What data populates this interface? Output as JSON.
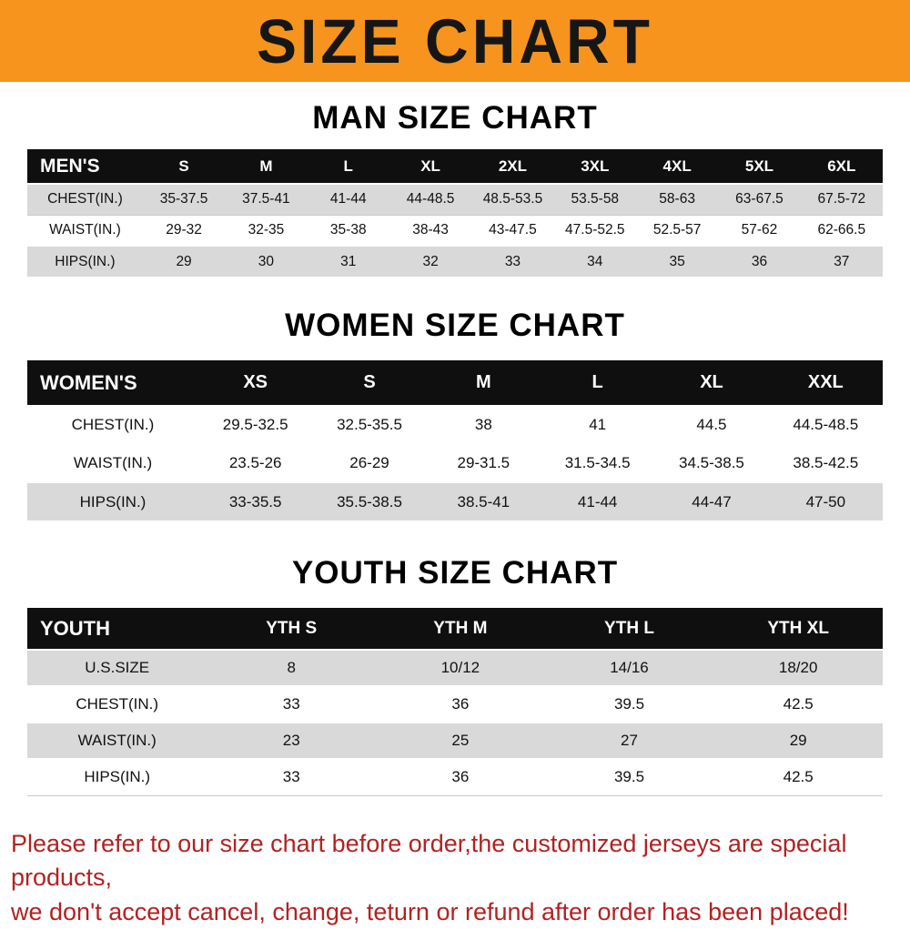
{
  "banner": {
    "title": "SIZE CHART",
    "bg_color": "#f7941d"
  },
  "chart_data": [
    {
      "type": "table",
      "title": "MAN SIZE CHART",
      "label": "MEN'S",
      "columns": [
        "S",
        "M",
        "L",
        "XL",
        "2XL",
        "3XL",
        "4XL",
        "5XL",
        "6XL"
      ],
      "rows": [
        {
          "label": "CHEST(IN.)",
          "values": [
            "35-37.5",
            "37.5-41",
            "41-44",
            "44-48.5",
            "48.5-53.5",
            "53.5-58",
            "58-63",
            "63-67.5",
            "67.5-72"
          ]
        },
        {
          "label": "WAIST(IN.)",
          "values": [
            "29-32",
            "32-35",
            "35-38",
            "38-43",
            "43-47.5",
            "47.5-52.5",
            "52.5-57",
            "57-62",
            "62-66.5"
          ]
        },
        {
          "label": "HIPS(IN.)",
          "values": [
            "29",
            "30",
            "31",
            "32",
            "33",
            "34",
            "35",
            "36",
            "37"
          ]
        }
      ]
    },
    {
      "type": "table",
      "title": "WOMEN SIZE CHART",
      "label": "WOMEN'S",
      "columns": [
        "XS",
        "S",
        "M",
        "L",
        "XL",
        "XXL"
      ],
      "rows": [
        {
          "label": "CHEST(IN.)",
          "values": [
            "29.5-32.5",
            "32.5-35.5",
            "38",
            "41",
            "44.5",
            "44.5-48.5"
          ]
        },
        {
          "label": "WAIST(IN.)",
          "values": [
            "23.5-26",
            "26-29",
            "29-31.5",
            "31.5-34.5",
            "34.5-38.5",
            "38.5-42.5"
          ]
        },
        {
          "label": "HIPS(IN.)",
          "values": [
            "33-35.5",
            "35.5-38.5",
            "38.5-41",
            "41-44",
            "44-47",
            "47-50"
          ]
        }
      ]
    },
    {
      "type": "table",
      "title": "YOUTH SIZE CHART",
      "label": "YOUTH",
      "columns": [
        "YTH S",
        "YTH M",
        "YTH L",
        "YTH XL"
      ],
      "rows": [
        {
          "label": "U.S.SIZE",
          "values": [
            "8",
            "10/12",
            "14/16",
            "18/20"
          ]
        },
        {
          "label": "CHEST(IN.)",
          "values": [
            "33",
            "36",
            "39.5",
            "42.5"
          ]
        },
        {
          "label": "WAIST(IN.)",
          "values": [
            "23",
            "25",
            "27",
            "29"
          ]
        },
        {
          "label": "HIPS(IN.)",
          "values": [
            "33",
            "36",
            "39.5",
            "42.5"
          ]
        }
      ]
    }
  ],
  "disclaimer": {
    "line1": "Please refer to our size chart before order,the customized jerseys are special products,",
    "line2": "we don't accept cancel, change, teturn or refund after order has been placed!",
    "color": "#b22222"
  }
}
